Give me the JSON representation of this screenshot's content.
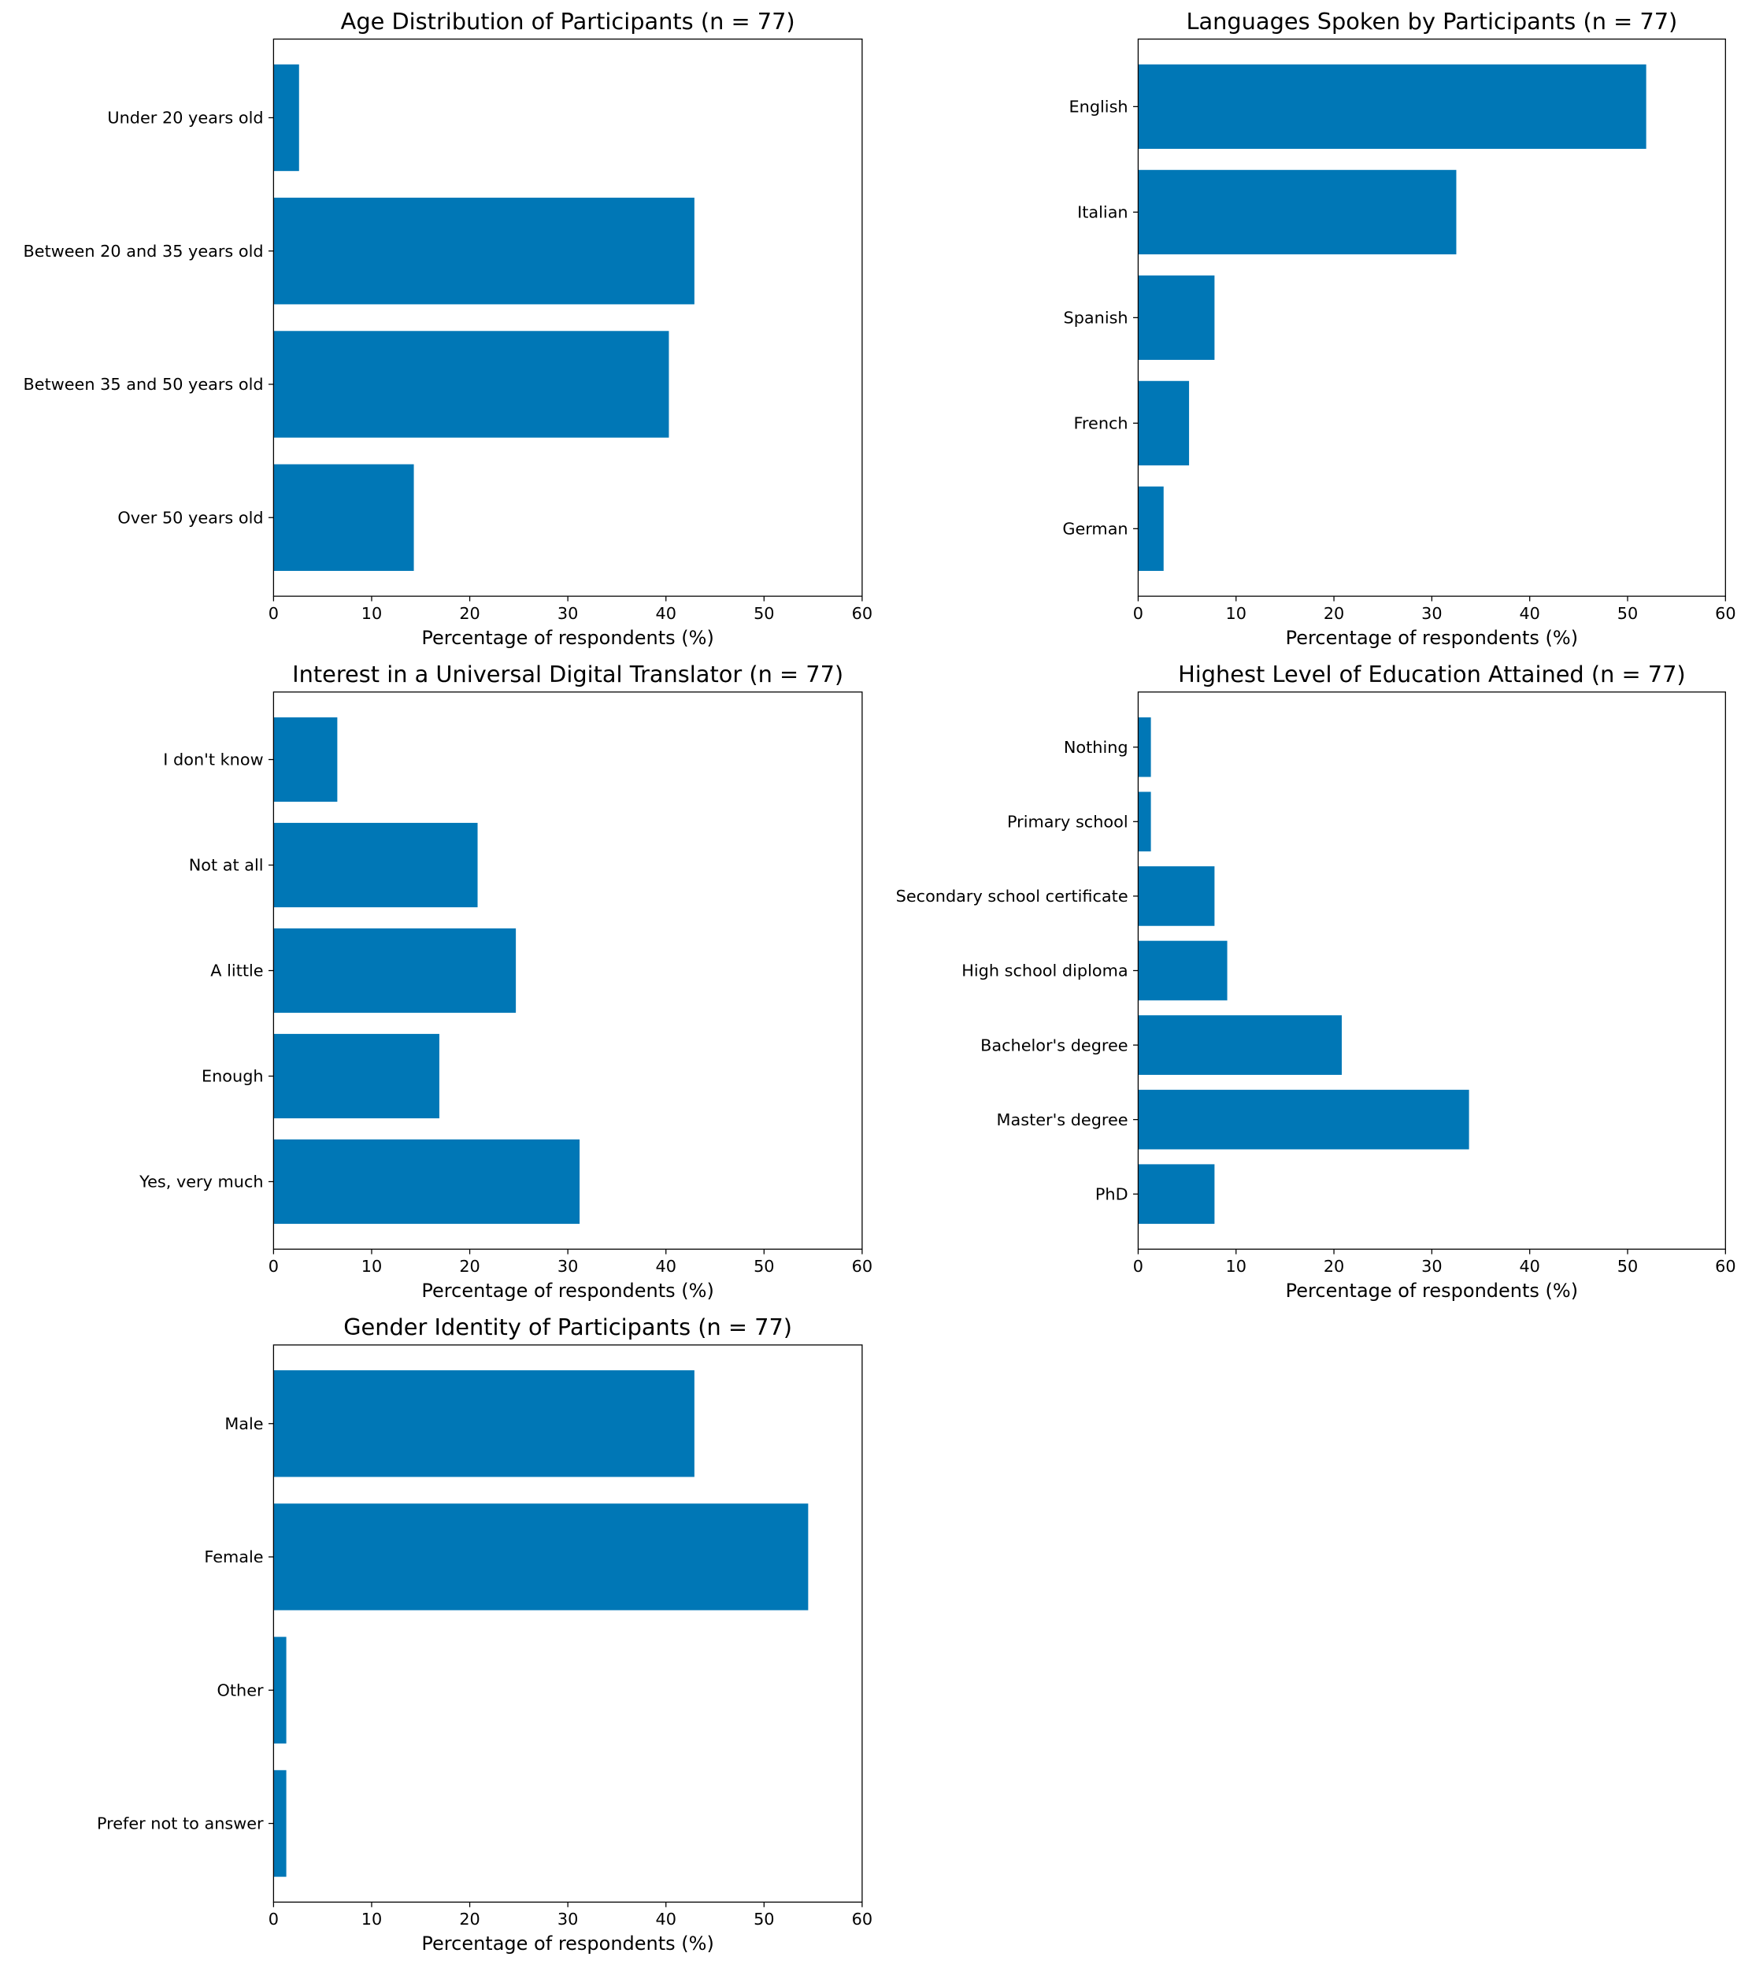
{
  "bar_color": "#0077b6",
  "chart_data": [
    {
      "type": "bar",
      "orientation": "horizontal",
      "title": "Age Distribution of Participants (n = 77)",
      "xlabel": "Percentage of respondents (%)",
      "ylabel": "",
      "xlim": [
        0,
        60
      ],
      "xticks": [
        "0",
        "10",
        "20",
        "30",
        "40",
        "50",
        "60"
      ],
      "categories": [
        "Under 20 years old",
        "Between 20 and 35 years old",
        "Between 35 and 50 years old",
        "Over 50 years old"
      ],
      "values": [
        2.6,
        42.9,
        40.3,
        14.3
      ]
    },
    {
      "type": "bar",
      "orientation": "horizontal",
      "title": "Languages Spoken by Participants (n = 77)",
      "xlabel": "Percentage of respondents (%)",
      "ylabel": "",
      "xlim": [
        0,
        60
      ],
      "xticks": [
        "0",
        "10",
        "20",
        "30",
        "40",
        "50",
        "60"
      ],
      "categories": [
        "English",
        "Italian",
        "Spanish",
        "French",
        "German"
      ],
      "values": [
        51.9,
        32.5,
        7.8,
        5.2,
        2.6
      ]
    },
    {
      "type": "bar",
      "orientation": "horizontal",
      "title": "Interest in a Universal Digital Translator (n = 77)",
      "xlabel": "Percentage of respondents (%)",
      "ylabel": "",
      "xlim": [
        0,
        60
      ],
      "xticks": [
        "0",
        "10",
        "20",
        "30",
        "40",
        "50",
        "60"
      ],
      "categories": [
        "I don't know",
        "Not at all",
        "A little",
        "Enough",
        "Yes, very much"
      ],
      "values": [
        6.5,
        20.8,
        24.7,
        16.9,
        31.2
      ]
    },
    {
      "type": "bar",
      "orientation": "horizontal",
      "title": "Highest Level of Education Attained (n = 77)",
      "xlabel": "Percentage of respondents (%)",
      "ylabel": "",
      "xlim": [
        0,
        60
      ],
      "xticks": [
        "0",
        "10",
        "20",
        "30",
        "40",
        "50",
        "60"
      ],
      "categories": [
        "Nothing",
        "Primary school",
        "Secondary school certificate",
        "High school diploma",
        "Bachelor's degree",
        "Master's degree",
        "PhD"
      ],
      "values": [
        1.3,
        1.3,
        7.8,
        9.1,
        20.8,
        33.8,
        7.8
      ]
    },
    {
      "type": "bar",
      "orientation": "horizontal",
      "title": "Gender Identity of Participants (n = 77)",
      "xlabel": "Percentage of respondents (%)",
      "ylabel": "",
      "xlim": [
        0,
        60
      ],
      "xticks": [
        "0",
        "10",
        "20",
        "30",
        "40",
        "50",
        "60"
      ],
      "categories": [
        "Male",
        "Female",
        "Other",
        "Prefer not to answer"
      ],
      "values": [
        42.9,
        54.5,
        1.3,
        1.3
      ]
    }
  ]
}
